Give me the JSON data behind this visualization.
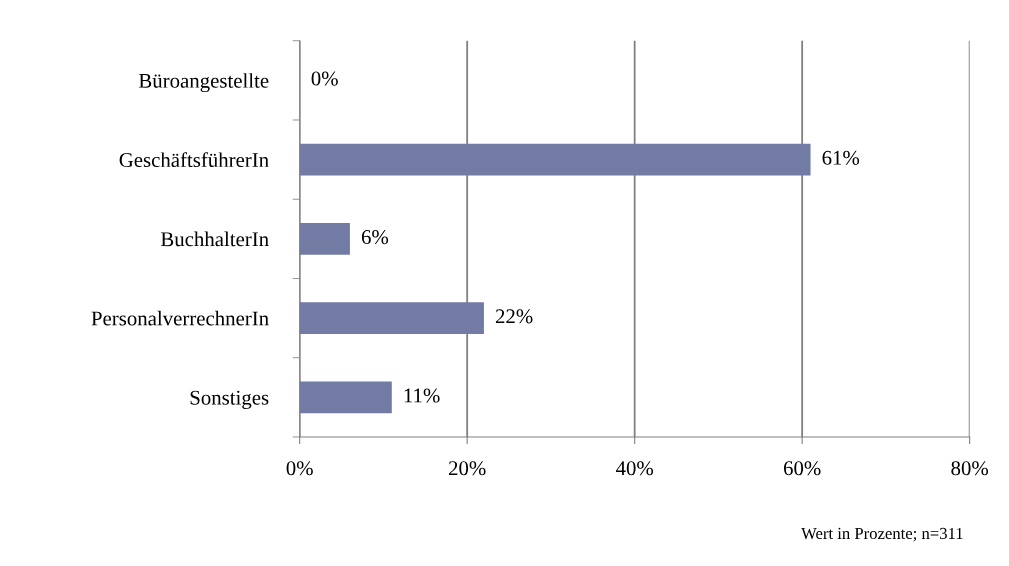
{
  "chart_data": {
    "type": "bar",
    "orientation": "horizontal",
    "categories": [
      "Büroangestellte",
      "GeschäftsführerIn",
      "BuchhalterIn",
      "PersonalverrechnerIn",
      "Sonstiges"
    ],
    "values": [
      0,
      61,
      6,
      22,
      11
    ],
    "value_labels": [
      "0%",
      "61%",
      "6%",
      "22%",
      "11%"
    ],
    "color": "#717ba3",
    "xlim": [
      0,
      80
    ],
    "xticks": [
      {
        "value": 0,
        "label": "0%"
      },
      {
        "value": 20,
        "label": "20%"
      },
      {
        "value": 40,
        "label": "40%"
      },
      {
        "value": 60,
        "label": "60%"
      },
      {
        "value": 80,
        "label": "80%"
      }
    ],
    "grid": "x",
    "annotations": [
      "Wert in Prozente; n=311"
    ]
  }
}
